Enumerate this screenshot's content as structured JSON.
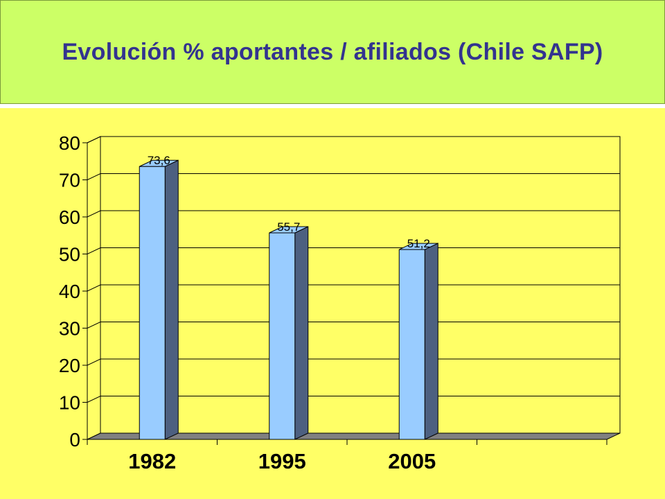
{
  "slide": {
    "title": "Evolución % aportantes / afiliados (Chile SAFP)"
  },
  "colors": {
    "title_bg": "#ccff66",
    "title_text": "#33338f",
    "slide_bg": "#ffff66",
    "plot_bg": "#ffff66",
    "bar_front": "#99ccff",
    "bar_side": "#4d6080",
    "floor": "#808080"
  },
  "chart_data": {
    "type": "bar",
    "categories": [
      "1982",
      "1995",
      "2005",
      ""
    ],
    "values": [
      73.6,
      55.7,
      51.2,
      null
    ],
    "data_labels": [
      "73,6",
      "55,7",
      "51,2",
      ""
    ],
    "title": "",
    "xlabel": "",
    "ylabel": "",
    "ylim": [
      0,
      80
    ],
    "yticks": [
      0,
      10,
      20,
      30,
      40,
      50,
      60,
      70,
      80
    ],
    "ytick_labels": [
      "0",
      "10",
      "20",
      "30",
      "40",
      "50",
      "60",
      "70",
      "80"
    ],
    "grid": true,
    "three_d": true,
    "legend": "none"
  }
}
